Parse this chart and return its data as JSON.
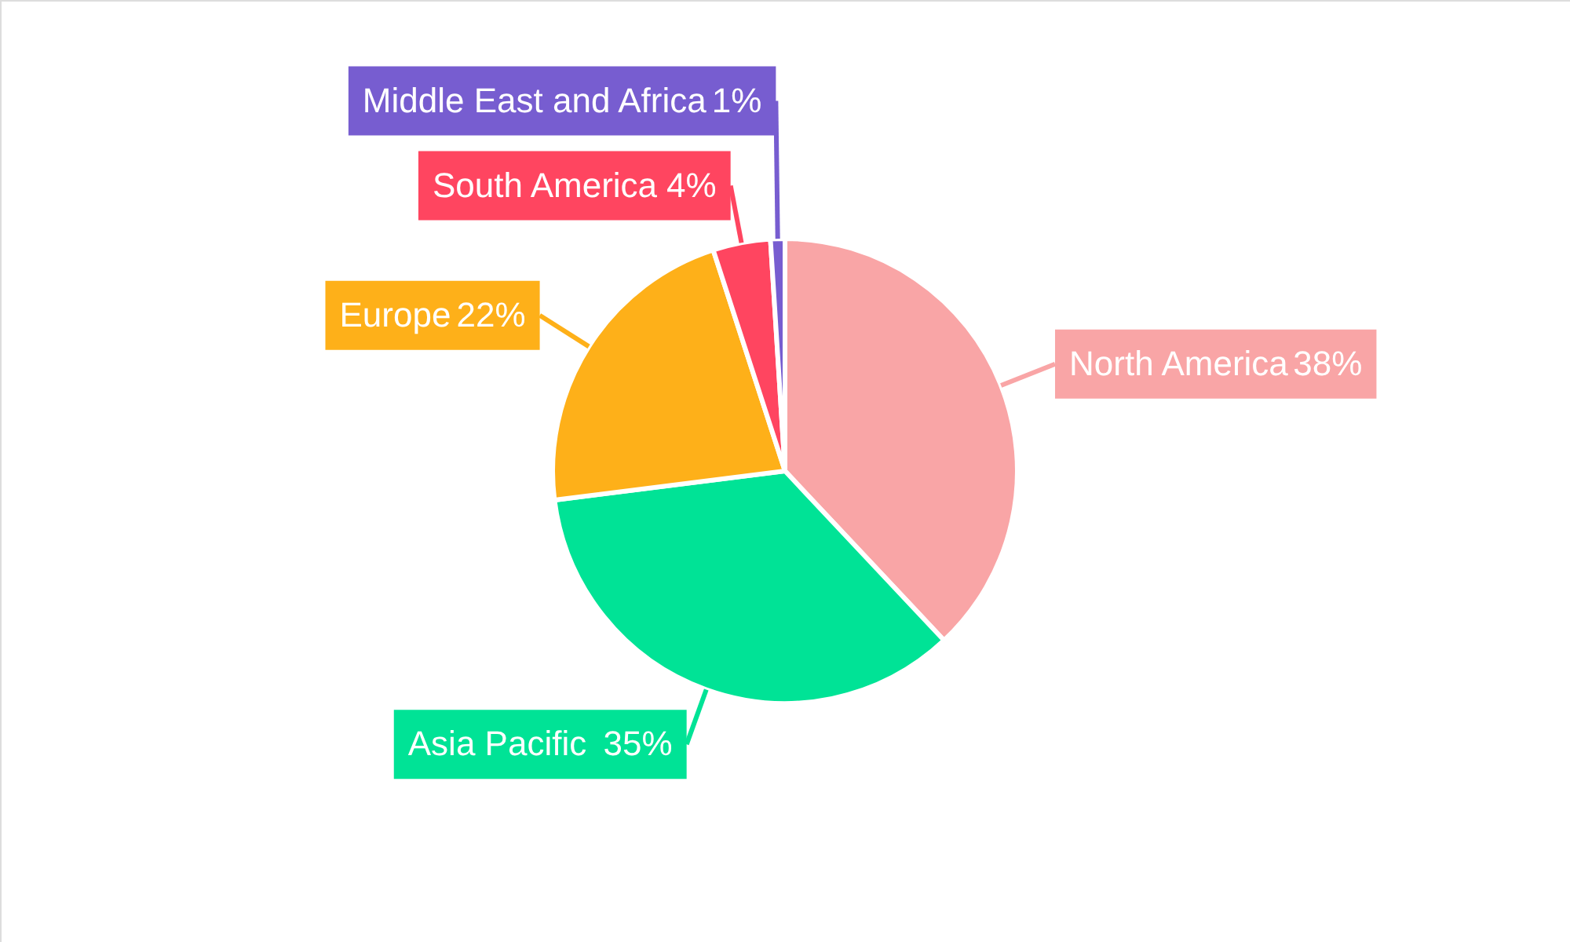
{
  "chart_data": {
    "type": "pie",
    "categories": [
      "North America",
      "Asia Pacific",
      "Europe",
      "South America",
      "Middle East and Africa"
    ],
    "values": [
      38,
      35,
      22,
      4,
      1
    ],
    "colors": [
      "#f9a5a6",
      "#00e396",
      "#feb019",
      "#ff4560",
      "#775dd0"
    ],
    "value_labels": [
      "38%",
      "35%",
      "22%",
      "4%",
      "1%"
    ]
  }
}
